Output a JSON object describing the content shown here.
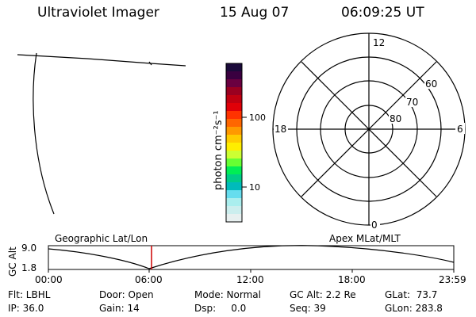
{
  "header": {
    "title": "Ultraviolet Imager",
    "date": "15 Aug 07",
    "time": "06:09:25 UT"
  },
  "colorbar": {
    "label": "photon cm⁻²s⁻¹",
    "ticks": [
      "100",
      "10"
    ],
    "colors": [
      "#1a0a3a",
      "#3a0040",
      "#6a0040",
      "#9a0020",
      "#c00010",
      "#e00008",
      "#ff3300",
      "#ff6600",
      "#ff9900",
      "#ffcc00",
      "#ffee00",
      "#ccff33",
      "#66ff33",
      "#00ee55",
      "#00cc88",
      "#00bbbb",
      "#66ddee",
      "#aaeeee",
      "#cceeee",
      "#e8f0f0"
    ]
  },
  "polar_plot": {
    "mlt_labels": {
      "top": "12",
      "bottom": "0",
      "left": "18",
      "right": "6"
    },
    "lat_labels": [
      "60",
      "70",
      "80"
    ]
  },
  "timeline": {
    "y_axis_label": "GC Alt",
    "y_ticks": [
      "9.0",
      "1.8"
    ],
    "left_label": "Geographic Lat/Lon",
    "right_label": "Apex MLat/MLT",
    "x_ticks": [
      "00:00",
      "06:00",
      "12:00",
      "18:00",
      "23:59"
    ],
    "marker_color": "#cc0000"
  },
  "info": {
    "row1": {
      "filter": "Flt: LBHL",
      "door": "Door: Open",
      "mode": "Mode: Normal",
      "gc_alt": "GC Alt: 2.2 Re",
      "glat": "GLat:  73.7"
    },
    "row2": {
      "ip": "IP: 36.0",
      "gain": "Gain: 14",
      "dsp": "Dsp:     0.0",
      "seq": "Seq: 39",
      "glon": "GLon: 283.8"
    }
  }
}
